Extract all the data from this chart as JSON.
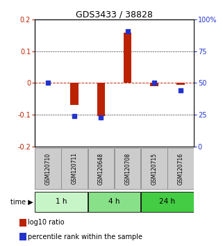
{
  "title": "GDS3433 / 38828",
  "samples": [
    "GSM120710",
    "GSM120711",
    "GSM120648",
    "GSM120708",
    "GSM120715",
    "GSM120716"
  ],
  "log10_ratio": [
    0.0,
    -0.07,
    -0.105,
    0.16,
    -0.01,
    -0.005
  ],
  "percentile_rank": [
    50,
    24,
    23,
    91,
    50,
    44
  ],
  "groups": [
    {
      "label": "1 h",
      "start": 0,
      "end": 2,
      "color": "#c8f5c8"
    },
    {
      "label": "4 h",
      "start": 2,
      "end": 4,
      "color": "#88e088"
    },
    {
      "label": "24 h",
      "start": 4,
      "end": 6,
      "color": "#44cc44"
    }
  ],
  "red_color": "#bb2200",
  "blue_color": "#2233cc",
  "ylim_left": [
    -0.2,
    0.2
  ],
  "ylim_right": [
    0,
    100
  ],
  "yticks_left": [
    -0.2,
    -0.1,
    0.0,
    0.1,
    0.2
  ],
  "ytick_labels_left": [
    "-0.2",
    "-0.1",
    "0",
    "0.1",
    "0.2"
  ],
  "yticks_right": [
    0,
    25,
    50,
    75,
    100
  ],
  "ytick_labels_right": [
    "0",
    "25",
    "50",
    "75",
    "100%"
  ],
  "dotted_lines": [
    0.1,
    -0.1
  ],
  "sample_box_color": "#cccccc",
  "sample_box_edge": "#888888",
  "time_label": "time",
  "legend_log10": "log10 ratio",
  "legend_pct": "percentile rank within the sample"
}
